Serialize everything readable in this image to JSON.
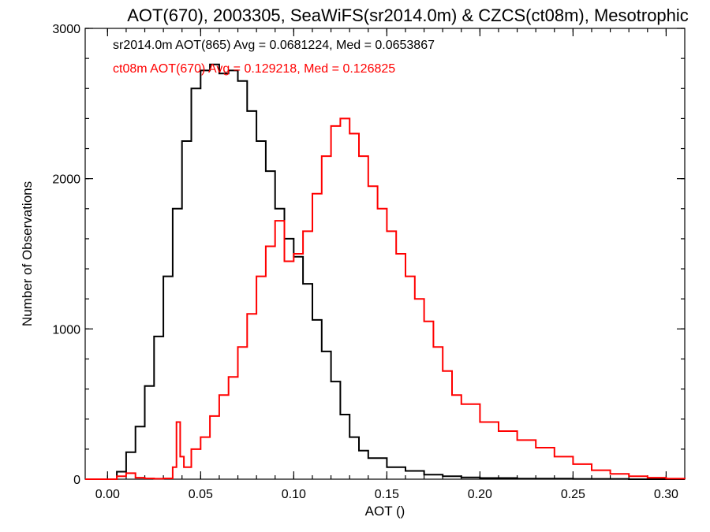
{
  "chart_data": {
    "type": "line",
    "title": "AOT(670), 2003305, SeaWiFS(sr2014.0m) & CZCS(ct08m), Mesotrophic",
    "xlabel": "AOT ()",
    "ylabel": "Number of Observations",
    "xlim": [
      -0.012,
      0.31
    ],
    "ylim": [
      0,
      3000
    ],
    "xticks": [
      0.0,
      0.05,
      0.1,
      0.15,
      0.2,
      0.25,
      0.3
    ],
    "xtick_labels": [
      "0.00",
      "0.05",
      "0.10",
      "0.15",
      "0.20",
      "0.25",
      "0.30"
    ],
    "yticks": [
      0,
      1000,
      2000,
      3000
    ],
    "ytick_labels": [
      "0",
      "1000",
      "2000",
      "3000"
    ],
    "grid": false,
    "legend_position": "top-left",
    "series": [
      {
        "name": "sr2014.0m AOT(865) Avg = 0.0681224, Med = 0.0653867",
        "color": "#000000",
        "x": [
          -0.012,
          0.0,
          0.005,
          0.01,
          0.015,
          0.02,
          0.025,
          0.03,
          0.035,
          0.04,
          0.045,
          0.05,
          0.055,
          0.06,
          0.065,
          0.07,
          0.075,
          0.08,
          0.085,
          0.09,
          0.095,
          0.1,
          0.105,
          0.11,
          0.115,
          0.12,
          0.125,
          0.13,
          0.135,
          0.14,
          0.15,
          0.16,
          0.17,
          0.18,
          0.19,
          0.2,
          0.22,
          0.25,
          0.28,
          0.31
        ],
        "y": [
          0,
          0,
          50,
          180,
          350,
          620,
          950,
          1350,
          1800,
          2250,
          2600,
          2720,
          2760,
          2700,
          2720,
          2650,
          2450,
          2250,
          2050,
          1800,
          1600,
          1480,
          1300,
          1060,
          850,
          650,
          430,
          280,
          190,
          140,
          80,
          55,
          30,
          20,
          12,
          8,
          4,
          2,
          0,
          0
        ]
      },
      {
        "name": "ct08m AOT(670) Avg = 0.129218, Med = 0.126825",
        "color": "#ff0000",
        "x": [
          -0.012,
          0.0,
          0.005,
          0.01,
          0.015,
          0.02,
          0.025,
          0.03,
          0.035,
          0.037,
          0.039,
          0.041,
          0.045,
          0.05,
          0.055,
          0.06,
          0.065,
          0.07,
          0.075,
          0.08,
          0.085,
          0.09,
          0.095,
          0.1,
          0.105,
          0.11,
          0.115,
          0.12,
          0.125,
          0.13,
          0.135,
          0.14,
          0.145,
          0.15,
          0.155,
          0.16,
          0.165,
          0.17,
          0.175,
          0.18,
          0.185,
          0.19,
          0.2,
          0.21,
          0.22,
          0.23,
          0.24,
          0.25,
          0.26,
          0.27,
          0.28,
          0.29,
          0.3,
          0.31
        ],
        "y": [
          0,
          0,
          20,
          40,
          10,
          5,
          3,
          5,
          80,
          380,
          150,
          80,
          200,
          280,
          420,
          560,
          680,
          880,
          1100,
          1350,
          1550,
          1720,
          1450,
          1500,
          1650,
          1900,
          2150,
          2350,
          2400,
          2300,
          2150,
          1950,
          1800,
          1650,
          1500,
          1350,
          1200,
          1050,
          880,
          720,
          560,
          500,
          380,
          320,
          260,
          210,
          150,
          100,
          60,
          35,
          20,
          10,
          4,
          0
        ]
      }
    ]
  }
}
